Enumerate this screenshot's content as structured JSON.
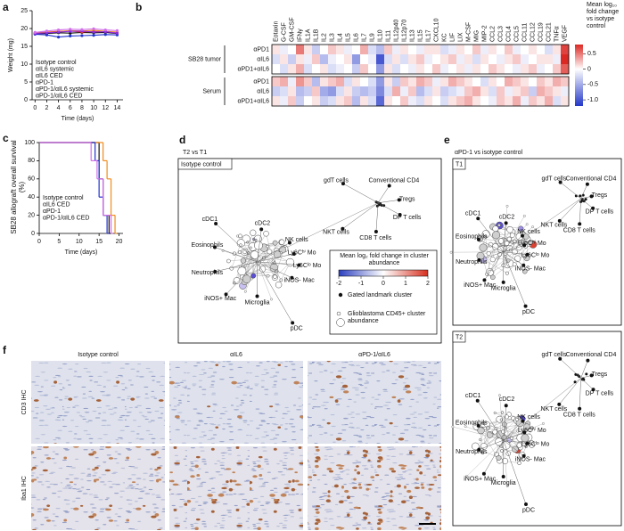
{
  "chart_data": [
    {
      "type": "line",
      "panel": "a",
      "xlabel": "Time (days)",
      "ylabel": "Weight (mg)",
      "x": [
        0,
        2,
        4,
        6,
        8,
        10,
        12,
        14
      ],
      "xlim": [
        -0.5,
        15
      ],
      "xticks": [
        0,
        2,
        4,
        6,
        8,
        10,
        12,
        14
      ],
      "ylim": [
        0,
        25
      ],
      "yticks": [
        0,
        5,
        10,
        15,
        20,
        25
      ],
      "series": [
        {
          "name": "Isotype control",
          "color": "#111111",
          "values": [
            18.5,
            18.6,
            18.8,
            18.7,
            18.9,
            18.8,
            18.9,
            18.6
          ]
        },
        {
          "name": "αIL6 systemic",
          "color": "#e8332a",
          "values": [
            18.8,
            19.0,
            19.2,
            19.3,
            19.0,
            19.2,
            19.1,
            18.8
          ]
        },
        {
          "name": "αIL6 CED",
          "color": "#f08c1e",
          "values": [
            18.7,
            18.9,
            19.1,
            19.4,
            19.3,
            19.5,
            19.2,
            19.0
          ]
        },
        {
          "name": "αPD-1",
          "color": "#2233cc",
          "values": [
            18.4,
            18.2,
            17.6,
            17.9,
            18.0,
            18.1,
            18.3,
            18.2
          ]
        },
        {
          "name": "αPD-1/αIL6 systemic",
          "color": "#8a2be2",
          "values": [
            18.6,
            18.8,
            19.0,
            19.2,
            19.3,
            19.0,
            19.1,
            18.7
          ]
        },
        {
          "name": "αPD-1/αIL6 CED",
          "color": "#d070e8",
          "values": [
            18.9,
            19.3,
            19.6,
            19.8,
            19.7,
            19.9,
            19.6,
            19.4
          ]
        }
      ]
    },
    {
      "type": "heatmap",
      "panel": "b",
      "columns": [
        "Eotaxin",
        "G-CSF",
        "GM-CSF",
        "IFNγ",
        "IL1A",
        "IL1B",
        "IL2",
        "IL3",
        "IL4",
        "IL5",
        "IL6",
        "IL7",
        "IL9",
        "IL10",
        "IL11",
        "IL12p40",
        "IL12p70",
        "IL13",
        "IL15",
        "IL17",
        "CXCL10",
        "KC",
        "LIF",
        "LIX",
        "M-CSF",
        "MIG",
        "MIP-2",
        "CCL2",
        "CCL3",
        "CCL4",
        "CCL5",
        "CCL11",
        "CCL12",
        "CCL19",
        "CCL21",
        "TNFα",
        "VEGF"
      ],
      "groups": [
        {
          "name": "SB28 tumor",
          "rows": [
            "αPD1",
            "αIL6",
            "αPD1+αIL6"
          ],
          "values": [
            [
              0.1,
              -0.1,
              0.0,
              0.5,
              0.1,
              -0.3,
              0.0,
              0.2,
              0.1,
              -0.1,
              0.0,
              0.3,
              -0.2,
              -0.4,
              0.2,
              -0.1,
              0.1,
              0.0,
              -0.1,
              0.1,
              0.1,
              -0.2,
              -0.1,
              0.1,
              0.0,
              0.2,
              -0.1,
              0.1,
              0.0,
              0.2,
              -0.1,
              0.0,
              0.1,
              0.0,
              -0.2,
              0.1,
              0.7
            ],
            [
              -0.2,
              0.1,
              -0.3,
              0.1,
              -0.1,
              0.2,
              -0.4,
              -0.1,
              0.0,
              0.1,
              -0.6,
              0.0,
              -0.1,
              -1.0,
              -0.2,
              0.1,
              -0.2,
              0.1,
              0.2,
              -0.1,
              0.0,
              0.1,
              0.2,
              -0.1,
              0.1,
              -0.2,
              0.1,
              0.0,
              -0.1,
              0.1,
              0.2,
              -0.1,
              0.0,
              0.1,
              0.1,
              -0.1,
              0.8
            ],
            [
              0.0,
              -0.2,
              0.1,
              0.3,
              -0.2,
              0.0,
              0.1,
              -0.2,
              -0.1,
              0.0,
              -0.3,
              0.2,
              0.0,
              -0.6,
              0.1,
              -0.2,
              0.0,
              -0.1,
              0.1,
              0.0,
              0.2,
              -0.1,
              0.0,
              0.1,
              -0.1,
              0.1,
              0.0,
              0.2,
              0.1,
              0.0,
              -0.1,
              0.1,
              0.2,
              -0.1,
              0.0,
              0.2,
              0.6
            ]
          ]
        },
        {
          "name": "Serum",
          "rows": [
            "αPD1",
            "αIL6",
            "αPD1+αIL6"
          ],
          "values": [
            [
              0.2,
              0.3,
              -0.1,
              0.4,
              0.2,
              -0.4,
              0.1,
              0.2,
              0.3,
              -0.2,
              0.1,
              0.0,
              -0.2,
              -0.6,
              0.1,
              -0.3,
              0.2,
              0.1,
              0.3,
              0.2,
              -0.1,
              0.1,
              0.3,
              0.2,
              0.1,
              0.0,
              -0.2,
              0.1,
              0.0,
              0.3,
              0.2,
              0.1,
              0.0,
              0.2,
              0.1,
              0.3,
              0.2
            ],
            [
              -0.3,
              -0.2,
              0.1,
              -0.4,
              -0.3,
              0.2,
              -0.5,
              -0.6,
              -0.2,
              0.1,
              -0.3,
              -0.4,
              -0.3,
              -0.7,
              -0.2,
              0.3,
              -0.1,
              0.2,
              -0.4,
              -0.2,
              0.1,
              -0.3,
              -0.2,
              -0.1,
              0.2,
              0.3,
              0.1,
              -0.2,
              0.2,
              -0.1,
              0.1,
              0.2,
              -0.3,
              0.3,
              0.2,
              0.1,
              -0.1
            ],
            [
              0.1,
              -0.1,
              0.2,
              -0.3,
              0.0,
              0.1,
              -0.3,
              -0.2,
              0.1,
              0.2,
              -0.4,
              0.1,
              -0.2,
              -0.9,
              0.1,
              0.0,
              0.2,
              -0.1,
              -0.2,
              0.1,
              0.0,
              -0.2,
              0.1,
              0.2,
              0.3,
              0.1,
              0.0,
              -0.1,
              0.2,
              0.1,
              0.3,
              -0.1,
              0.2,
              0.1,
              0.3,
              -0.2,
              0.1
            ]
          ]
        }
      ],
      "colorbar_title": "Mean log₁₀ fold change vs isotype control",
      "colorbar_lim": [
        -1.2,
        0.8
      ],
      "colorbar_ticks": [
        0.5,
        0,
        -0.5,
        {
          "value": -1,
          "label": "-1.0"
        }
      ]
    },
    {
      "type": "step",
      "panel": "c",
      "xlabel": "Time (days)",
      "ylabel": "SB28 allograft overall survival (%)",
      "xlim": [
        0,
        21
      ],
      "xticks": [
        0,
        5,
        10,
        15,
        20
      ],
      "ylim": [
        0,
        100
      ],
      "yticks": [
        0,
        20,
        40,
        60,
        80,
        100
      ],
      "series": [
        {
          "name": "Isotype control",
          "color": "#111111",
          "x": [
            0,
            15,
            16,
            17.5
          ],
          "values": [
            100,
            60,
            20,
            0
          ]
        },
        {
          "name": "αIL6 CED",
          "color": "#f08c1e",
          "x": [
            0,
            16,
            17,
            18,
            19
          ],
          "values": [
            100,
            80,
            60,
            20,
            0
          ]
        },
        {
          "name": "αPD-1",
          "color": "#2233cc",
          "x": [
            0,
            14,
            15,
            16,
            17
          ],
          "values": [
            100,
            80,
            40,
            20,
            0
          ]
        },
        {
          "name": "αPD-1/αIL6 CED",
          "color": "#d070e8",
          "x": [
            0,
            13,
            14.5,
            16,
            18
          ],
          "values": [
            100,
            80,
            60,
            20,
            0
          ]
        }
      ]
    }
  ],
  "networks": [
    {
      "panel": "d",
      "title": "T2 vs T1",
      "box_title": "Isotype control",
      "nodes": [
        "Conventional CD4",
        "Tregs",
        "DP T cells",
        "CD8 T cells",
        "NKT cells",
        "gdT cells",
        "cDC1",
        "cDC2",
        "NK cells",
        "Ly6Cʰⁱ Mo",
        "Ly6Cˡᵒ Mo",
        "iNOS- Mac",
        "iNOS+ Mac",
        "Eosinophils",
        "Neutrophils",
        "Microglia",
        "pDC"
      ],
      "legend": {
        "title": "Mean log₂ fold change in cluster abundance",
        "ticks": [
          -2,
          -1,
          0,
          1,
          2
        ],
        "landmark": "Gated landmark cluster",
        "abundance": "Glioblastoma CD45+ cluster abundance"
      }
    },
    {
      "panel": "e",
      "title": "αPD-1 vs isotype control",
      "box_title": "T1",
      "nodes": [
        "Conventional CD4",
        "Tregs",
        "DP T cells",
        "CD8 T cells",
        "NKT cells",
        "gdT cells",
        "cDC1",
        "cDC2",
        "NK cells",
        "Ly6Cʰⁱ Mo",
        "Ly6Cˡᵒ Mo",
        "iNOS- Mac",
        "iNOS+ Mac",
        "Eosinophils",
        "Neutrophils",
        "Microglia",
        "pDC"
      ]
    },
    {
      "box_title": "T2",
      "nodes": [
        "Conventional CD4",
        "Tregs",
        "DP T cells",
        "CD8 T cells",
        "NKT cells",
        "gdT cells",
        "cDC1",
        "cDC2",
        "NK cells",
        "Ly6Cʰⁱ Mo",
        "Ly6Cˡᵒ Mo",
        "iNOS- Mac",
        "iNOS+ Mac",
        "Eosinophils",
        "Neutrophils",
        "Microglia",
        "pDC"
      ]
    }
  ],
  "ihc": {
    "panel": "f",
    "columns": [
      "Isotype control",
      "αIL6",
      "αPD-1/αIL6"
    ],
    "rows": [
      "CD3 IHC",
      "Iba1 IHC"
    ]
  }
}
